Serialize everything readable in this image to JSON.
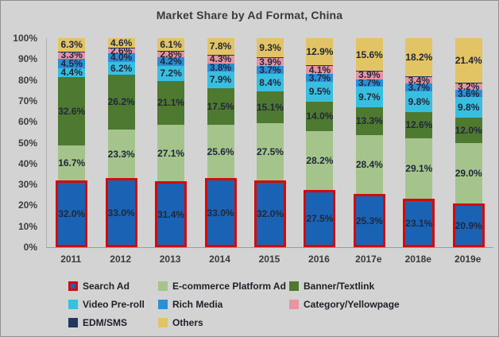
{
  "title": "Market Share by Ad Format, China",
  "chart_data": {
    "type": "bar",
    "stacked": true,
    "title": "Market Share by Ad Format, China",
    "xlabel": "",
    "ylabel": "",
    "ylim": [
      0,
      100
    ],
    "grid": false,
    "legend_position": "bottom",
    "yticks": [
      "100%",
      "90%",
      "80%",
      "70%",
      "60%",
      "50%",
      "40%",
      "30%",
      "20%",
      "10%",
      "0%"
    ],
    "categories": [
      "2011",
      "2012",
      "2013",
      "2014",
      "2015",
      "2016",
      "2017e",
      "2018e",
      "2019e"
    ],
    "series": [
      {
        "name": "Search Ad",
        "color": "#1a63b4",
        "border_color": "#d40a0a",
        "values": [
          32.0,
          33.0,
          31.4,
          33.0,
          32.0,
          27.5,
          25.3,
          23.1,
          20.9
        ]
      },
      {
        "name": "E-commerce Platform Ad",
        "color": "#a4c48c",
        "values": [
          16.7,
          23.3,
          27.1,
          25.6,
          27.5,
          28.2,
          28.4,
          29.1,
          29.0
        ]
      },
      {
        "name": "Banner/Textlink",
        "color": "#4e7930",
        "values": [
          32.6,
          26.2,
          21.1,
          17.5,
          15.1,
          14.0,
          13.3,
          12.6,
          12.0
        ]
      },
      {
        "name": "Video Pre-roll",
        "color": "#38bfe0",
        "values": [
          4.4,
          6.2,
          7.2,
          7.9,
          8.4,
          9.5,
          9.7,
          9.8,
          9.8
        ]
      },
      {
        "name": "Rich Media",
        "color": "#2b8fd6",
        "values": [
          4.5,
          4.0,
          4.2,
          3.8,
          3.7,
          3.7,
          3.7,
          3.7,
          3.6
        ]
      },
      {
        "name": "Category/Yellowpage",
        "color": "#e795a3",
        "values": [
          3.3,
          2.6,
          2.8,
          4.3,
          3.9,
          4.1,
          3.9,
          3.4,
          3.2
        ]
      },
      {
        "name": "EDM/SMS",
        "color": "#1f3864",
        "values": [
          0.2,
          0.1,
          0.1,
          0.1,
          0.1,
          0.1,
          0.1,
          0.1,
          0.1
        ],
        "show_labels": false
      },
      {
        "name": "Others",
        "color": "#e2c465",
        "values": [
          6.3,
          4.6,
          6.1,
          7.8,
          9.3,
          12.9,
          15.6,
          18.2,
          21.4
        ]
      }
    ]
  },
  "colors": {
    "background": "#d3d3d3",
    "search_border_red": "#d40a0a",
    "label_text": "#23273a",
    "axis_text": "#3d3d3d"
  }
}
